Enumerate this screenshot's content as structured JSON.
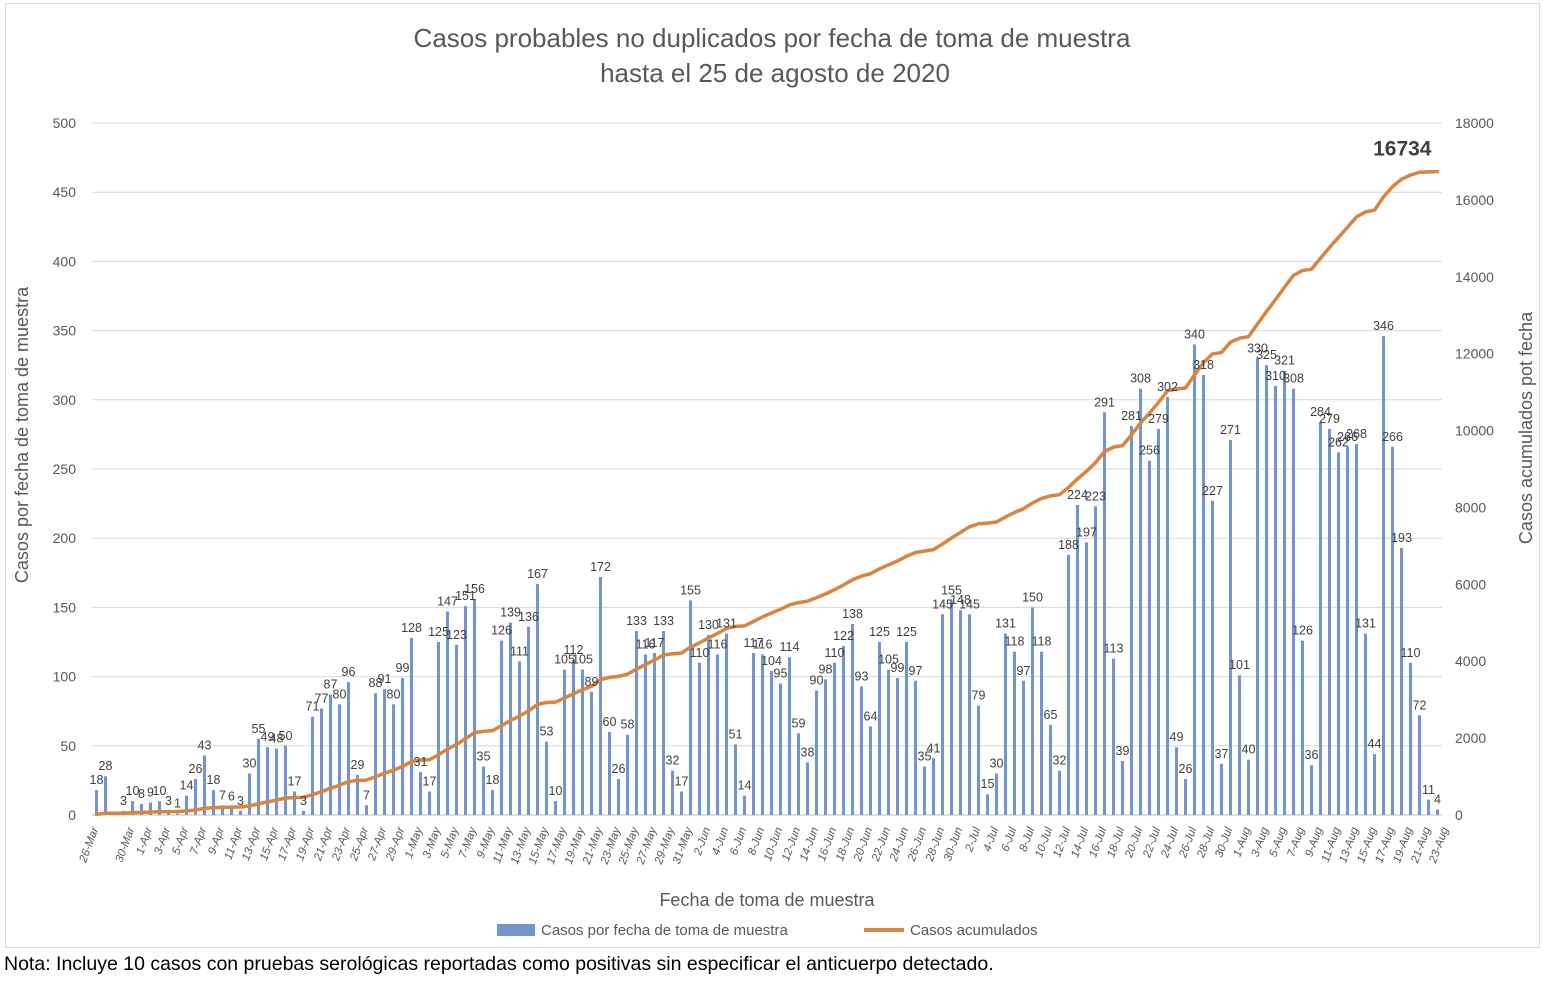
{
  "chart_data": {
    "type": "bar",
    "title_lines": [
      "Casos probables no duplicados por fecha de toma de muestra",
      "hasta el  25 de agosto de 2020"
    ],
    "xlabel": "Fecha de toma de muestra",
    "ylabel": "Casos por fecha de toma de muestra",
    "y2label": "Casos acumulados pot fecha",
    "ylim": [
      0,
      500
    ],
    "y_ticks": [
      "0",
      "50",
      "100",
      "150",
      "200",
      "250",
      "300",
      "350",
      "400",
      "450",
      "500"
    ],
    "y2lim": [
      0,
      18000
    ],
    "y2_ticks": [
      "0",
      "2000",
      "4000",
      "6000",
      "8000",
      "10000",
      "12000",
      "14000",
      "16000",
      "18000"
    ],
    "grid": true,
    "legend_position": "bottom",
    "colors": {
      "bars": "#7296CC",
      "line": "#D9843F"
    },
    "start_date": "2020-03-26",
    "x_tick_labels": [
      "26-Mar",
      "30-Mar",
      "1-Apr",
      "3-Apr",
      "5-Apr",
      "7-Apr",
      "9-Apr",
      "11-Apr",
      "13-Apr",
      "15-Apr",
      "17-Apr",
      "19-Apr",
      "21-Apr",
      "23-Apr",
      "25-Apr",
      "27-Apr",
      "29-Apr",
      "1-May",
      "3-May",
      "5-May",
      "7-May",
      "9-May",
      "11-May",
      "13-May",
      "15-May",
      "17-May",
      "19-May",
      "21-May",
      "23-May",
      "25-May",
      "27-May",
      "29-May",
      "31-May",
      "2-Jun",
      "4-Jun",
      "6-Jun",
      "8-Jun",
      "10-Jun",
      "12-Jun",
      "14-Jun",
      "16-Jun",
      "18-Jun",
      "20-Jun",
      "22-Jun",
      "24-Jun",
      "26-Jun",
      "28-Jun",
      "30-Jun",
      "2-Jul",
      "4-Jul",
      "6-Jul",
      "8-Jul",
      "10-Jul",
      "12-Jul",
      "14-Jul",
      "16-Jul",
      "18-Jul",
      "20-Jul",
      "22-Jul",
      "24-Jul",
      "26-Jul",
      "28-Jul",
      "30-Jul",
      "1-Aug",
      "3-Aug",
      "5-Aug",
      "7-Aug",
      "9-Aug",
      "11-Aug",
      "13-Aug",
      "15-Aug",
      "17-Aug",
      "19-Aug",
      "21-Aug",
      "23-Aug"
    ],
    "x_tick_indices": [
      0,
      4,
      6,
      8,
      10,
      12,
      14,
      16,
      18,
      20,
      22,
      24,
      26,
      28,
      30,
      32,
      34,
      36,
      38,
      40,
      42,
      44,
      46,
      48,
      50,
      52,
      54,
      56,
      58,
      60,
      62,
      64,
      66,
      68,
      70,
      72,
      74,
      76,
      78,
      80,
      82,
      84,
      86,
      88,
      90,
      92,
      94,
      96,
      98,
      100,
      102,
      104,
      106,
      108,
      110,
      112,
      114,
      116,
      118,
      120,
      122,
      124,
      126,
      128,
      130,
      132,
      134,
      136,
      138,
      140,
      142,
      144,
      146,
      148,
      150
    ],
    "series": [
      {
        "name": "Casos por fecha de toma de muestra",
        "values": [
          18,
          28,
          0,
          3,
          10,
          8,
          9,
          10,
          3,
          1,
          14,
          26,
          43,
          18,
          7,
          6,
          3,
          30,
          55,
          49,
          48,
          50,
          17,
          3,
          71,
          77,
          87,
          80,
          96,
          29,
          7,
          88,
          91,
          80,
          99,
          128,
          31,
          17,
          125,
          147,
          123,
          151,
          156,
          35,
          18,
          126,
          139,
          111,
          136,
          167,
          53,
          10,
          105,
          112,
          105,
          89,
          172,
          60,
          26,
          58,
          133,
          116,
          117,
          133,
          32,
          17,
          155,
          110,
          130,
          116,
          131,
          51,
          14,
          117,
          116,
          104,
          95,
          114,
          59,
          38,
          90,
          98,
          110,
          122,
          138,
          93,
          64,
          125,
          105,
          99,
          125,
          97,
          35,
          41,
          145,
          155,
          148,
          145,
          79,
          15,
          30,
          131,
          118,
          97,
          150,
          118,
          65,
          32,
          188,
          224,
          197,
          223,
          291,
          113,
          39,
          281,
          308,
          256,
          279,
          302,
          49,
          26,
          340,
          318,
          227,
          37,
          271,
          101,
          40,
          330,
          325,
          310,
          321,
          308,
          126,
          36,
          284,
          279,
          262,
          266,
          268,
          131,
          44,
          346,
          266,
          193,
          110,
          72,
          11,
          4
        ],
        "labels": [
          "18",
          "28",
          "",
          "3",
          "10",
          "8",
          "9",
          "10",
          "3",
          "1",
          "14",
          "26",
          "43",
          "18",
          "7",
          "6",
          "3",
          "30",
          "55",
          "49",
          "48",
          "50",
          "17",
          "3",
          "71",
          "77",
          "87",
          "80",
          "96",
          "29",
          "7",
          "88",
          "91",
          "80",
          "99",
          "128",
          "31",
          "17",
          "125",
          "147",
          "123",
          "151",
          "156",
          "35",
          "18",
          "126",
          "139",
          "111",
          "136",
          "167",
          "53",
          "10",
          "105",
          "112",
          "105",
          "89",
          "172",
          "60",
          "26",
          "58",
          "133",
          "116",
          "117",
          "133",
          "32",
          "17",
          "155",
          "110",
          "130",
          "116",
          "131",
          "51",
          "14",
          "117",
          "116",
          "104",
          "95",
          "114",
          "59",
          "38",
          "90",
          "98",
          "110",
          "122",
          "138",
          "93",
          "64",
          "125",
          "105",
          "99",
          "125",
          "97",
          "35",
          "41",
          "145",
          "155",
          "148",
          "145",
          "79",
          "15",
          "30",
          "131",
          "118",
          "97",
          "150",
          "118",
          "65",
          "32",
          "188",
          "224",
          "197",
          "223",
          "291",
          "113",
          "39",
          "281",
          "308",
          "256",
          "279",
          "302",
          "49",
          "26",
          "340",
          "318",
          "227",
          "37",
          "271",
          "101",
          "40",
          "330",
          "325",
          "310",
          "321",
          "308",
          "126",
          "36",
          "284",
          "279",
          "262",
          "266",
          "268",
          "131",
          "44",
          "346",
          "266",
          "193",
          "110",
          "72",
          "11",
          "4"
        ]
      },
      {
        "name": "Casos acumulados",
        "axis": "y2",
        "values": [
          18,
          46,
          46,
          49,
          59,
          67,
          76,
          86,
          89,
          90,
          104,
          130,
          173,
          191,
          198,
          204,
          207,
          237,
          292,
          341,
          389,
          439,
          456,
          459,
          530,
          607,
          694,
          774,
          870,
          899,
          906,
          994,
          1085,
          1165,
          1264,
          1392,
          1423,
          1440,
          1565,
          1712,
          1835,
          1986,
          2142,
          2177,
          2195,
          2321,
          2460,
          2571,
          2707,
          2874,
          2927,
          2937,
          3042,
          3154,
          3259,
          3348,
          3520,
          3580,
          3606,
          3664,
          3797,
          3913,
          4030,
          4163,
          4195,
          4212,
          4367,
          4477,
          4607,
          4723,
          4854,
          4905,
          4919,
          5036,
          5152,
          5256,
          5351,
          5465,
          5524,
          5562,
          5652,
          5750,
          5860,
          5982,
          6120,
          6213,
          6277,
          6402,
          6507,
          6606,
          6731,
          6828,
          6863,
          6904,
          7049,
          7204,
          7352,
          7497,
          7576,
          7591,
          7621,
          7752,
          7870,
          7967,
          8117,
          8235,
          8300,
          8332,
          8520,
          8744,
          8941,
          9164,
          9455,
          9568,
          9607,
          9888,
          10196,
          10452,
          10731,
          11033,
          11082,
          11108,
          11448,
          11766,
          11993,
          12030,
          12301,
          12402,
          12442,
          12772,
          13097,
          13407,
          13728,
          14036,
          14162,
          14198,
          14482,
          14761,
          15023,
          15289,
          15557,
          15688,
          15732,
          16078,
          16344,
          16537,
          16647,
          16719,
          16730,
          16734
        ],
        "last_label": "16734"
      }
    ]
  },
  "footnote": "Nota: Incluye 10 casos con pruebas serológicas reportadas como positivas sin especificar el anticuerpo detectado."
}
